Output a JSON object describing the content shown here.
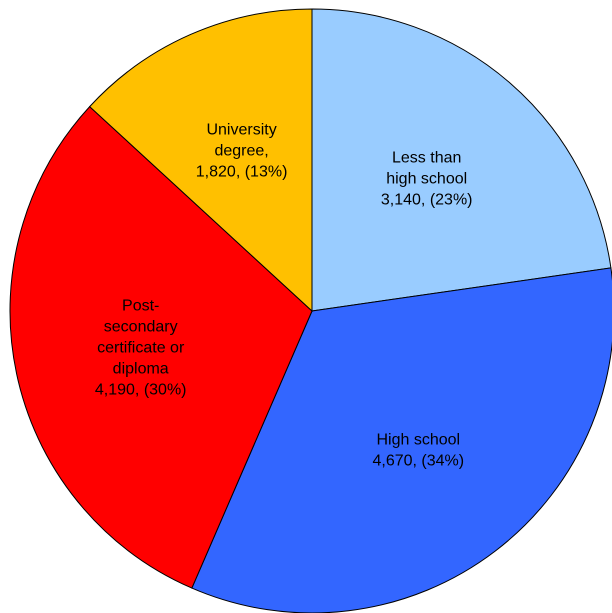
{
  "chart_data": {
    "type": "pie",
    "title": "",
    "start_angle_deg": 0,
    "direction": "clockwise",
    "slices": [
      {
        "name": "Less than high school",
        "value": 3140,
        "percent": 23,
        "color": "#99ccff",
        "label_lines": [
          "Less than",
          "high school",
          "3,140, (23%)"
        ]
      },
      {
        "name": "High school",
        "value": 4670,
        "percent": 34,
        "color": "#3366ff",
        "label_lines": [
          "High school",
          "4,670, (34%)"
        ]
      },
      {
        "name": "Post-secondary certificate or diploma",
        "value": 4190,
        "percent": 30,
        "color": "#ff0000",
        "label_lines": [
          "Post-",
          "secondary",
          "certificate or",
          "diploma",
          "4,190, (30%)"
        ]
      },
      {
        "name": "University degree",
        "value": 1820,
        "percent": 13,
        "color": "#ffc000",
        "label_lines": [
          "University",
          "degree,",
          "1,820, (13%)"
        ]
      }
    ]
  }
}
